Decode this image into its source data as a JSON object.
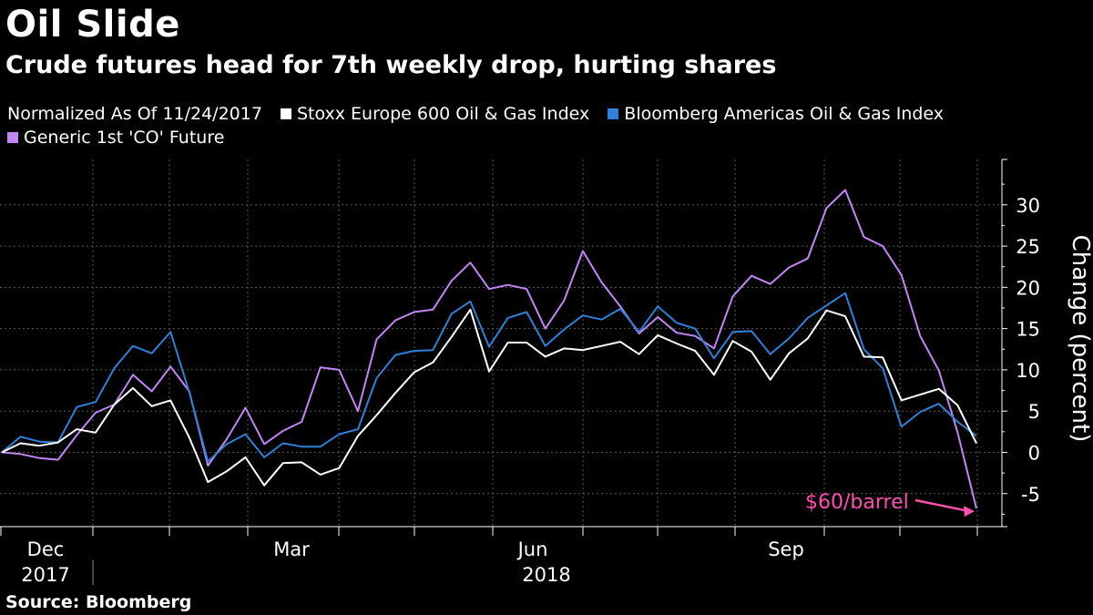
{
  "header": {
    "title": "Oil Slide",
    "subtitle": "Crude futures head for 7th weekly drop, hurting shares"
  },
  "legend": {
    "note": "Normalized As Of 11/24/2017",
    "items": [
      {
        "label": "Stoxx Europe 600 Oil & Gas Index",
        "color": "#ffffff"
      },
      {
        "label": "Bloomberg Americas Oil & Gas Index",
        "color": "#2f80d8"
      },
      {
        "label": "Generic 1st 'CO' Future",
        "color": "#c285f5"
      }
    ]
  },
  "source": "Source: Bloomberg",
  "chart_data": {
    "type": "line",
    "ylabel": "Change (percent)",
    "ylim": [
      -10,
      35
    ],
    "yticks": [
      -5,
      0,
      5,
      10,
      15,
      20,
      25,
      30
    ],
    "grid": true,
    "legend_position": "top-left",
    "x_tick_labels": [
      {
        "label": "Dec",
        "year": "2017"
      },
      {
        "label": "Mar",
        "year": ""
      },
      {
        "label": "Jun",
        "year": "2018"
      },
      {
        "label": "Sep",
        "year": ""
      }
    ],
    "annotation": {
      "text": "$60/barrel",
      "color": "#ff4fae"
    },
    "series": [
      {
        "name": "Stoxx Europe 600 Oil & Gas Index",
        "color": "#ffffff",
        "values": [
          0,
          1.1,
          0.8,
          1.2,
          2.8,
          2.4,
          5.8,
          7.8,
          5.6,
          6.3,
          1.8,
          -3.6,
          -2.3,
          -0.6,
          -4,
          -1.3,
          -1.2,
          -2.7,
          -1.9,
          2,
          4.5,
          7.2,
          9.7,
          10.9,
          14,
          17.3,
          9.8,
          13.3,
          13.3,
          11.6,
          12.6,
          12.4,
          12.9,
          13.4,
          11.9,
          14.2,
          13.2,
          12.3,
          9.4,
          13.5,
          12.2,
          8.8,
          12,
          13.8,
          17.2,
          16.5,
          11.6,
          11.5,
          6.3,
          7,
          7.7,
          5.7,
          1.1
        ]
      },
      {
        "name": "Bloomberg Americas Oil & Gas Index",
        "color": "#2f80d8",
        "values": [
          0,
          1.9,
          1.3,
          1.2,
          5.5,
          6.1,
          10.2,
          12.9,
          12,
          14.6,
          7.3,
          -1.1,
          1,
          2.2,
          -0.6,
          1.1,
          0.7,
          0.7,
          2.2,
          2.8,
          9,
          11.8,
          12.3,
          12.4,
          16.8,
          18.3,
          12.8,
          16.3,
          17,
          12.9,
          14.9,
          16.6,
          16.1,
          17.4,
          14.6,
          17.7,
          15.7,
          15,
          11.4,
          14.6,
          14.7,
          11.9,
          13.8,
          16.3,
          17.8,
          19.3,
          12.5,
          10.2,
          3.1,
          4.9,
          5.9,
          3.7,
          2
        ]
      },
      {
        "name": "Generic 1st 'CO' Future",
        "color": "#c285f5",
        "values": [
          0,
          -0.2,
          -0.7,
          -0.9,
          2.1,
          4.8,
          5.8,
          9.4,
          7.4,
          10.4,
          7.4,
          -1.6,
          1.6,
          5.4,
          1,
          2.6,
          3.7,
          10.3,
          10,
          5,
          13.7,
          16,
          17,
          17.3,
          20.8,
          23,
          19.8,
          20.3,
          19.8,
          15,
          18.4,
          24.4,
          20.6,
          17.7,
          14.4,
          16.4,
          14.5,
          14.1,
          12.6,
          18.9,
          21.4,
          20.4,
          22.4,
          23.5,
          29.6,
          31.8,
          26.1,
          25,
          21.5,
          14.1,
          9.9,
          2.4,
          -6.8
        ]
      }
    ]
  }
}
